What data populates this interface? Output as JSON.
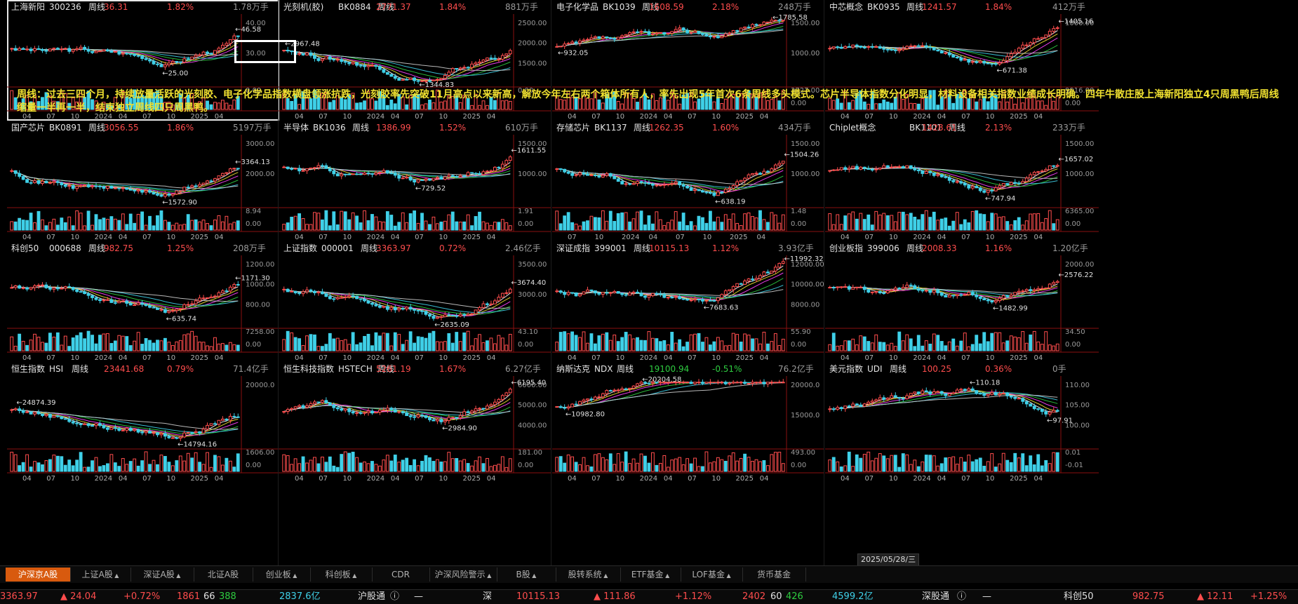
{
  "panels": [
    {
      "name": "上海新阳",
      "code": "300236",
      "period": "周线",
      "price": "36.31",
      "pct": "1.82%",
      "vol": "1.78万手",
      "updown": "up",
      "high_label": "46.58",
      "low_label": "25.00",
      "y_ticks": [
        "40.00",
        "30.00"
      ],
      "vol_ticks": [
        "0.00"
      ],
      "x_ticks": [
        "04",
        "07",
        "10",
        "2024",
        "04",
        "07",
        "10",
        "2025",
        "04"
      ]
    },
    {
      "name": "光刻机(胶)",
      "code": "BK0884",
      "period": "周线",
      "price": "2771.37",
      "pct": "1.84%",
      "vol": "881万手",
      "updown": "up",
      "high_label": "2967.48",
      "low_label": "1344.83",
      "y_ticks": [
        "2500.00",
        "2000.00",
        "1500.00"
      ],
      "vol_ticks": [
        "0.00"
      ],
      "x_ticks": [
        "04",
        "07",
        "10",
        "2024",
        "04",
        "07",
        "10",
        "2025",
        "04"
      ]
    },
    {
      "name": "电子化学品",
      "code": "BK1039",
      "period": "周线",
      "price": "1608.59",
      "pct": "2.18%",
      "vol": "248万手",
      "updown": "up",
      "high_label": "1785.58",
      "low_label": "932.05",
      "y_ticks": [
        "1500.00",
        "1000.00"
      ],
      "vol_ticks": [
        "3727.00",
        "0.00"
      ],
      "x_ticks": [
        "04",
        "07",
        "10",
        "2024",
        "04",
        "07",
        "10",
        "2025",
        "04"
      ]
    },
    {
      "name": "中芯概念",
      "code": "BK0935",
      "period": "周线",
      "price": "1241.57",
      "pct": "1.84%",
      "vol": "412万手",
      "updown": "up",
      "high_label": "1405.16",
      "low_label": "671.38",
      "y_ticks": [
        "1000.00"
      ],
      "vol_ticks": [
        "9916.00",
        "0.00"
      ],
      "x_ticks": [
        "04",
        "07",
        "10",
        "2024",
        "04",
        "07",
        "10",
        "2025",
        "04"
      ]
    },
    {
      "name": "国产芯片",
      "code": "BK0891",
      "period": "周线",
      "price": "3056.55",
      "pct": "1.86%",
      "vol": "5197万手",
      "updown": "up",
      "high_label": "3364.13",
      "low_label": "1572.90",
      "y_ticks": [
        "3000.00",
        "2000.00"
      ],
      "vol_ticks": [
        "8.94",
        "0.00"
      ],
      "x_ticks": [
        "04",
        "07",
        "10",
        "2024",
        "04",
        "07",
        "10",
        "2025",
        "04"
      ]
    },
    {
      "name": "半导体",
      "code": "BK1036",
      "period": "周线",
      "price": "1386.99",
      "pct": "1.52%",
      "vol": "610万手",
      "updown": "up",
      "high_label": "1611.55",
      "low_label": "729.52",
      "y_ticks": [
        "1500.00",
        "1000.00"
      ],
      "vol_ticks": [
        "1.91",
        "0.00"
      ],
      "x_ticks": [
        "04",
        "07",
        "10",
        "2024",
        "04",
        "07",
        "10",
        "2025",
        "04"
      ]
    },
    {
      "name": "存储芯片",
      "code": "BK1137",
      "period": "周线",
      "price": "1262.35",
      "pct": "1.60%",
      "vol": "434万手",
      "updown": "up",
      "high_label": "1504.26",
      "low_label": "638.19",
      "y_ticks": [
        "1500.00",
        "1000.00"
      ],
      "vol_ticks": [
        "1.48",
        "0.00"
      ],
      "x_ticks": [
        "07",
        "10",
        "2024",
        "04",
        "07",
        "10",
        "2025",
        "04"
      ]
    },
    {
      "name": "Chiplet概念",
      "code": "BK1101",
      "period": "周线",
      "price": "1428.61",
      "pct": "2.13%",
      "vol": "233万手",
      "updown": "up",
      "high_label": "1657.02",
      "low_label": "747.94",
      "y_ticks": [
        "1500.00",
        "1000.00"
      ],
      "vol_ticks": [
        "6365.00",
        "0.00"
      ],
      "x_ticks": [
        "04",
        "07",
        "10",
        "2024",
        "04",
        "07",
        "10",
        "2025",
        "04"
      ]
    },
    {
      "name": "科创50",
      "code": "000688",
      "period": "周线",
      "price": "982.75",
      "pct": "1.25%",
      "vol": "208万手",
      "updown": "up",
      "high_label": "1171.30",
      "low_label": "635.74",
      "y_ticks": [
        "1200.00",
        "1000.00",
        "800.00"
      ],
      "vol_ticks": [
        "7258.00",
        "0.00"
      ],
      "x_ticks": [
        "04",
        "07",
        "10",
        "2024",
        "04",
        "07",
        "10",
        "2025",
        "04"
      ]
    },
    {
      "name": "上证指数",
      "code": "000001",
      "period": "周线",
      "price": "3363.97",
      "pct": "0.72%",
      "vol": "2.46亿手",
      "updown": "up",
      "high_label": "3674.40",
      "low_label": "2635.09",
      "y_ticks": [
        "3500.00",
        "3000.00"
      ],
      "vol_ticks": [
        "43.10",
        "0.00"
      ],
      "x_ticks": [
        "04",
        "07",
        "10",
        "2024",
        "04",
        "07",
        "10",
        "2025",
        "04"
      ]
    },
    {
      "name": "深证成指",
      "code": "399001",
      "period": "周线",
      "price": "10115.13",
      "pct": "1.12%",
      "vol": "3.93亿手",
      "updown": "up",
      "high_label": "11992.32",
      "low_label": "7683.63",
      "y_ticks": [
        "12000.00",
        "10000.00",
        "8000.00"
      ],
      "vol_ticks": [
        "55.90",
        "0.00"
      ],
      "x_ticks": [
        "04",
        "07",
        "10",
        "2024",
        "04",
        "07",
        "10",
        "2025",
        "04"
      ]
    },
    {
      "name": "创业板指",
      "code": "399006",
      "period": "周线",
      "price": "2008.33",
      "pct": "1.16%",
      "vol": "1.20亿手",
      "updown": "up",
      "high_label": "2576.22",
      "low_label": "1482.99",
      "y_ticks": [
        "2000.00"
      ],
      "vol_ticks": [
        "34.50",
        "0.00"
      ],
      "x_ticks": [
        "04",
        "07",
        "10",
        "2024",
        "04",
        "07",
        "10",
        "2025",
        "04"
      ]
    },
    {
      "name": "恒生指数",
      "code": "HSI",
      "period": "周线",
      "price": "23441.68",
      "pct": "0.79%",
      "vol": "71.4亿手",
      "updown": "up",
      "high_label": "24874.39",
      "low_label": "14794.16",
      "y_ticks": [
        "20000.0"
      ],
      "vol_ticks": [
        "1606.00",
        "0.00"
      ],
      "x_ticks": [
        "04",
        "07",
        "10",
        "2024",
        "04",
        "07",
        "10",
        "2025",
        "04"
      ]
    },
    {
      "name": "恒生科技指数",
      "code": "HSTECH",
      "period": "周线",
      "price": "5261.19",
      "pct": "1.67%",
      "vol": "6.27亿手",
      "updown": "up",
      "high_label": "6195.40",
      "low_label": "2984.90",
      "y_ticks": [
        "6000.00",
        "5000.00",
        "4000.00"
      ],
      "vol_ticks": [
        "181.00",
        "0.00"
      ],
      "x_ticks": [
        "04",
        "07",
        "10",
        "2024",
        "04",
        "07",
        "10",
        "2025",
        "04"
      ]
    },
    {
      "name": "纳斯达克",
      "code": "NDX",
      "period": "周线",
      "price": "19100.94",
      "pct": "-0.51%",
      "vol": "76.2亿手",
      "updown": "down",
      "high_label": "20204.58",
      "low_label": "10982.80",
      "y_ticks": [
        "20000.0",
        "15000.0"
      ],
      "vol_ticks": [
        "493.00",
        "0.00"
      ],
      "x_ticks": [
        "04",
        "07",
        "10",
        "2024",
        "04",
        "07",
        "10",
        "2025",
        "04"
      ]
    },
    {
      "name": "美元指数",
      "code": "UDI",
      "period": "周线",
      "price": "100.25",
      "pct": "0.36%",
      "vol": "0手",
      "updown": "up",
      "high_label": "110.18",
      "low_label": "97.91",
      "y_ticks": [
        "110.00",
        "105.00",
        "100.00"
      ],
      "vol_ticks": [
        "0.01",
        "-0.01"
      ],
      "x_ticks": [
        "04",
        "07",
        "10",
        "2024",
        "04",
        "07",
        "10",
        "2025",
        "04"
      ]
    }
  ],
  "note": "周线：过去三四个月，持续放量活跃的光刻胶、电子化学品指数横盘领涨抗跌，光刻胶率先突破11月高点以来新高，解放今年左右两个箱体所有人，率先出现5年首次6条周线多头模式。芯片半导体指数分化明显，材料设备相关指数业绩成长明确。四年牛散庄股上海新阳独立4只周黑鸭后周线缩量一半再一半，结束独立周线四只周黑鸭。",
  "date_box": "2025/05/28/三",
  "tabs": [
    "沪深京A股",
    "上证A股",
    "深证A股",
    "北证A股",
    "创业板",
    "科创板",
    "CDR",
    "沪深风险警示",
    "B股",
    "股转系统",
    "ETF基金",
    "LOF基金",
    "货币基金"
  ],
  "tabs_with_arrow": [
    false,
    true,
    true,
    false,
    true,
    true,
    false,
    true,
    true,
    true,
    true,
    true,
    false
  ],
  "ticker": {
    "sh_price": "3363.97",
    "sh_chg": "▲ 24.04",
    "sh_pct": "+0.72%",
    "sh_up": "1861",
    "sh_flat": "66",
    "sh_down": "388",
    "sh_amt": "2837.6亿",
    "hgt_label": "沪股通",
    "hgt_val": "—",
    "sz_label": "深",
    "sz_price": "10115.13",
    "sz_chg": "▲ 111.86",
    "sz_pct": "+1.12%",
    "sz_up": "2402",
    "sz_flat": "60",
    "sz_down": "426",
    "sz_amt": "4599.2亿",
    "sgt_label": "深股通",
    "sgt_val": "—",
    "kc_label": "科创50",
    "kc_price": "982.75",
    "kc_chg": "▲ 12.11",
    "kc_pct": "+1.25%"
  },
  "colors": {
    "up": "#ff4d4d",
    "down": "#2ecc40",
    "vol_up": "#ff4d4d",
    "vol_down": "#3fd0e8",
    "ma": [
      "#ffffff",
      "#f0e130",
      "#ff40ff",
      "#2ecc40",
      "#3fd0e8",
      "#cccccc"
    ]
  }
}
